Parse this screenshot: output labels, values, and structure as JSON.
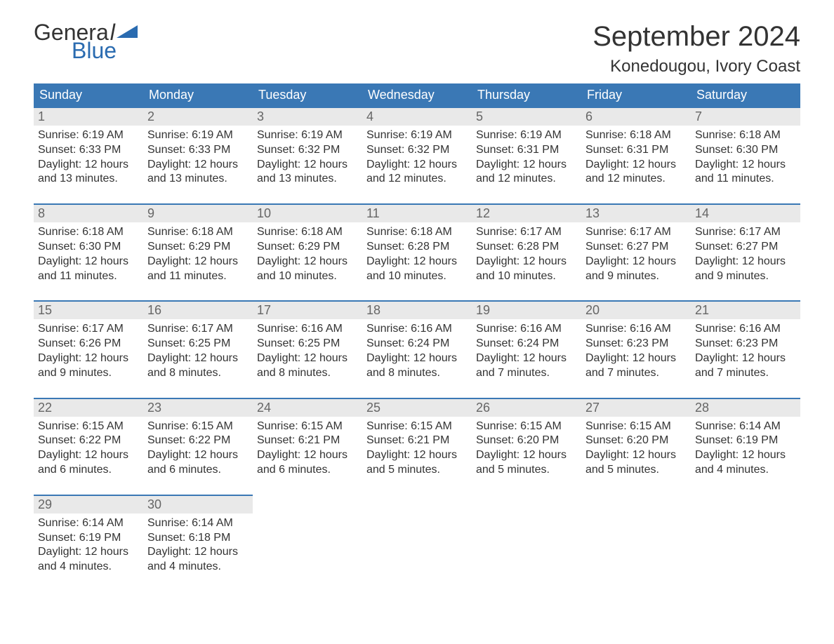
{
  "logo": {
    "general": "Genera",
    "l": "l",
    "blue": "Blue",
    "triangle_color": "#2a6bb0"
  },
  "title": "September 2024",
  "location": "Konedougou, Ivory Coast",
  "day_headers": [
    "Sunday",
    "Monday",
    "Tuesday",
    "Wednesday",
    "Thursday",
    "Friday",
    "Saturday"
  ],
  "colors": {
    "header_bg": "#3a78b5",
    "header_text": "#ffffff",
    "daynum_bg": "#e9e9e9",
    "daynum_border": "#3a78b5",
    "daynum_text": "#666666",
    "body_text": "#333333",
    "logo_blue": "#2a6bb0"
  },
  "weeks": [
    [
      {
        "num": "1",
        "sunrise": "Sunrise: 6:19 AM",
        "sunset": "Sunset: 6:33 PM",
        "daylight": "Daylight: 12 hours and 13 minutes."
      },
      {
        "num": "2",
        "sunrise": "Sunrise: 6:19 AM",
        "sunset": "Sunset: 6:33 PM",
        "daylight": "Daylight: 12 hours and 13 minutes."
      },
      {
        "num": "3",
        "sunrise": "Sunrise: 6:19 AM",
        "sunset": "Sunset: 6:32 PM",
        "daylight": "Daylight: 12 hours and 13 minutes."
      },
      {
        "num": "4",
        "sunrise": "Sunrise: 6:19 AM",
        "sunset": "Sunset: 6:32 PM",
        "daylight": "Daylight: 12 hours and 12 minutes."
      },
      {
        "num": "5",
        "sunrise": "Sunrise: 6:19 AM",
        "sunset": "Sunset: 6:31 PM",
        "daylight": "Daylight: 12 hours and 12 minutes."
      },
      {
        "num": "6",
        "sunrise": "Sunrise: 6:18 AM",
        "sunset": "Sunset: 6:31 PM",
        "daylight": "Daylight: 12 hours and 12 minutes."
      },
      {
        "num": "7",
        "sunrise": "Sunrise: 6:18 AM",
        "sunset": "Sunset: 6:30 PM",
        "daylight": "Daylight: 12 hours and 11 minutes."
      }
    ],
    [
      {
        "num": "8",
        "sunrise": "Sunrise: 6:18 AM",
        "sunset": "Sunset: 6:30 PM",
        "daylight": "Daylight: 12 hours and 11 minutes."
      },
      {
        "num": "9",
        "sunrise": "Sunrise: 6:18 AM",
        "sunset": "Sunset: 6:29 PM",
        "daylight": "Daylight: 12 hours and 11 minutes."
      },
      {
        "num": "10",
        "sunrise": "Sunrise: 6:18 AM",
        "sunset": "Sunset: 6:29 PM",
        "daylight": "Daylight: 12 hours and 10 minutes."
      },
      {
        "num": "11",
        "sunrise": "Sunrise: 6:18 AM",
        "sunset": "Sunset: 6:28 PM",
        "daylight": "Daylight: 12 hours and 10 minutes."
      },
      {
        "num": "12",
        "sunrise": "Sunrise: 6:17 AM",
        "sunset": "Sunset: 6:28 PM",
        "daylight": "Daylight: 12 hours and 10 minutes."
      },
      {
        "num": "13",
        "sunrise": "Sunrise: 6:17 AM",
        "sunset": "Sunset: 6:27 PM",
        "daylight": "Daylight: 12 hours and 9 minutes."
      },
      {
        "num": "14",
        "sunrise": "Sunrise: 6:17 AM",
        "sunset": "Sunset: 6:27 PM",
        "daylight": "Daylight: 12 hours and 9 minutes."
      }
    ],
    [
      {
        "num": "15",
        "sunrise": "Sunrise: 6:17 AM",
        "sunset": "Sunset: 6:26 PM",
        "daylight": "Daylight: 12 hours and 9 minutes."
      },
      {
        "num": "16",
        "sunrise": "Sunrise: 6:17 AM",
        "sunset": "Sunset: 6:25 PM",
        "daylight": "Daylight: 12 hours and 8 minutes."
      },
      {
        "num": "17",
        "sunrise": "Sunrise: 6:16 AM",
        "sunset": "Sunset: 6:25 PM",
        "daylight": "Daylight: 12 hours and 8 minutes."
      },
      {
        "num": "18",
        "sunrise": "Sunrise: 6:16 AM",
        "sunset": "Sunset: 6:24 PM",
        "daylight": "Daylight: 12 hours and 8 minutes."
      },
      {
        "num": "19",
        "sunrise": "Sunrise: 6:16 AM",
        "sunset": "Sunset: 6:24 PM",
        "daylight": "Daylight: 12 hours and 7 minutes."
      },
      {
        "num": "20",
        "sunrise": "Sunrise: 6:16 AM",
        "sunset": "Sunset: 6:23 PM",
        "daylight": "Daylight: 12 hours and 7 minutes."
      },
      {
        "num": "21",
        "sunrise": "Sunrise: 6:16 AM",
        "sunset": "Sunset: 6:23 PM",
        "daylight": "Daylight: 12 hours and 7 minutes."
      }
    ],
    [
      {
        "num": "22",
        "sunrise": "Sunrise: 6:15 AM",
        "sunset": "Sunset: 6:22 PM",
        "daylight": "Daylight: 12 hours and 6 minutes."
      },
      {
        "num": "23",
        "sunrise": "Sunrise: 6:15 AM",
        "sunset": "Sunset: 6:22 PM",
        "daylight": "Daylight: 12 hours and 6 minutes."
      },
      {
        "num": "24",
        "sunrise": "Sunrise: 6:15 AM",
        "sunset": "Sunset: 6:21 PM",
        "daylight": "Daylight: 12 hours and 6 minutes."
      },
      {
        "num": "25",
        "sunrise": "Sunrise: 6:15 AM",
        "sunset": "Sunset: 6:21 PM",
        "daylight": "Daylight: 12 hours and 5 minutes."
      },
      {
        "num": "26",
        "sunrise": "Sunrise: 6:15 AM",
        "sunset": "Sunset: 6:20 PM",
        "daylight": "Daylight: 12 hours and 5 minutes."
      },
      {
        "num": "27",
        "sunrise": "Sunrise: 6:15 AM",
        "sunset": "Sunset: 6:20 PM",
        "daylight": "Daylight: 12 hours and 5 minutes."
      },
      {
        "num": "28",
        "sunrise": "Sunrise: 6:14 AM",
        "sunset": "Sunset: 6:19 PM",
        "daylight": "Daylight: 12 hours and 4 minutes."
      }
    ],
    [
      {
        "num": "29",
        "sunrise": "Sunrise: 6:14 AM",
        "sunset": "Sunset: 6:19 PM",
        "daylight": "Daylight: 12 hours and 4 minutes."
      },
      {
        "num": "30",
        "sunrise": "Sunrise: 6:14 AM",
        "sunset": "Sunset: 6:18 PM",
        "daylight": "Daylight: 12 hours and 4 minutes."
      },
      {
        "empty": true
      },
      {
        "empty": true
      },
      {
        "empty": true
      },
      {
        "empty": true
      },
      {
        "empty": true
      }
    ]
  ]
}
